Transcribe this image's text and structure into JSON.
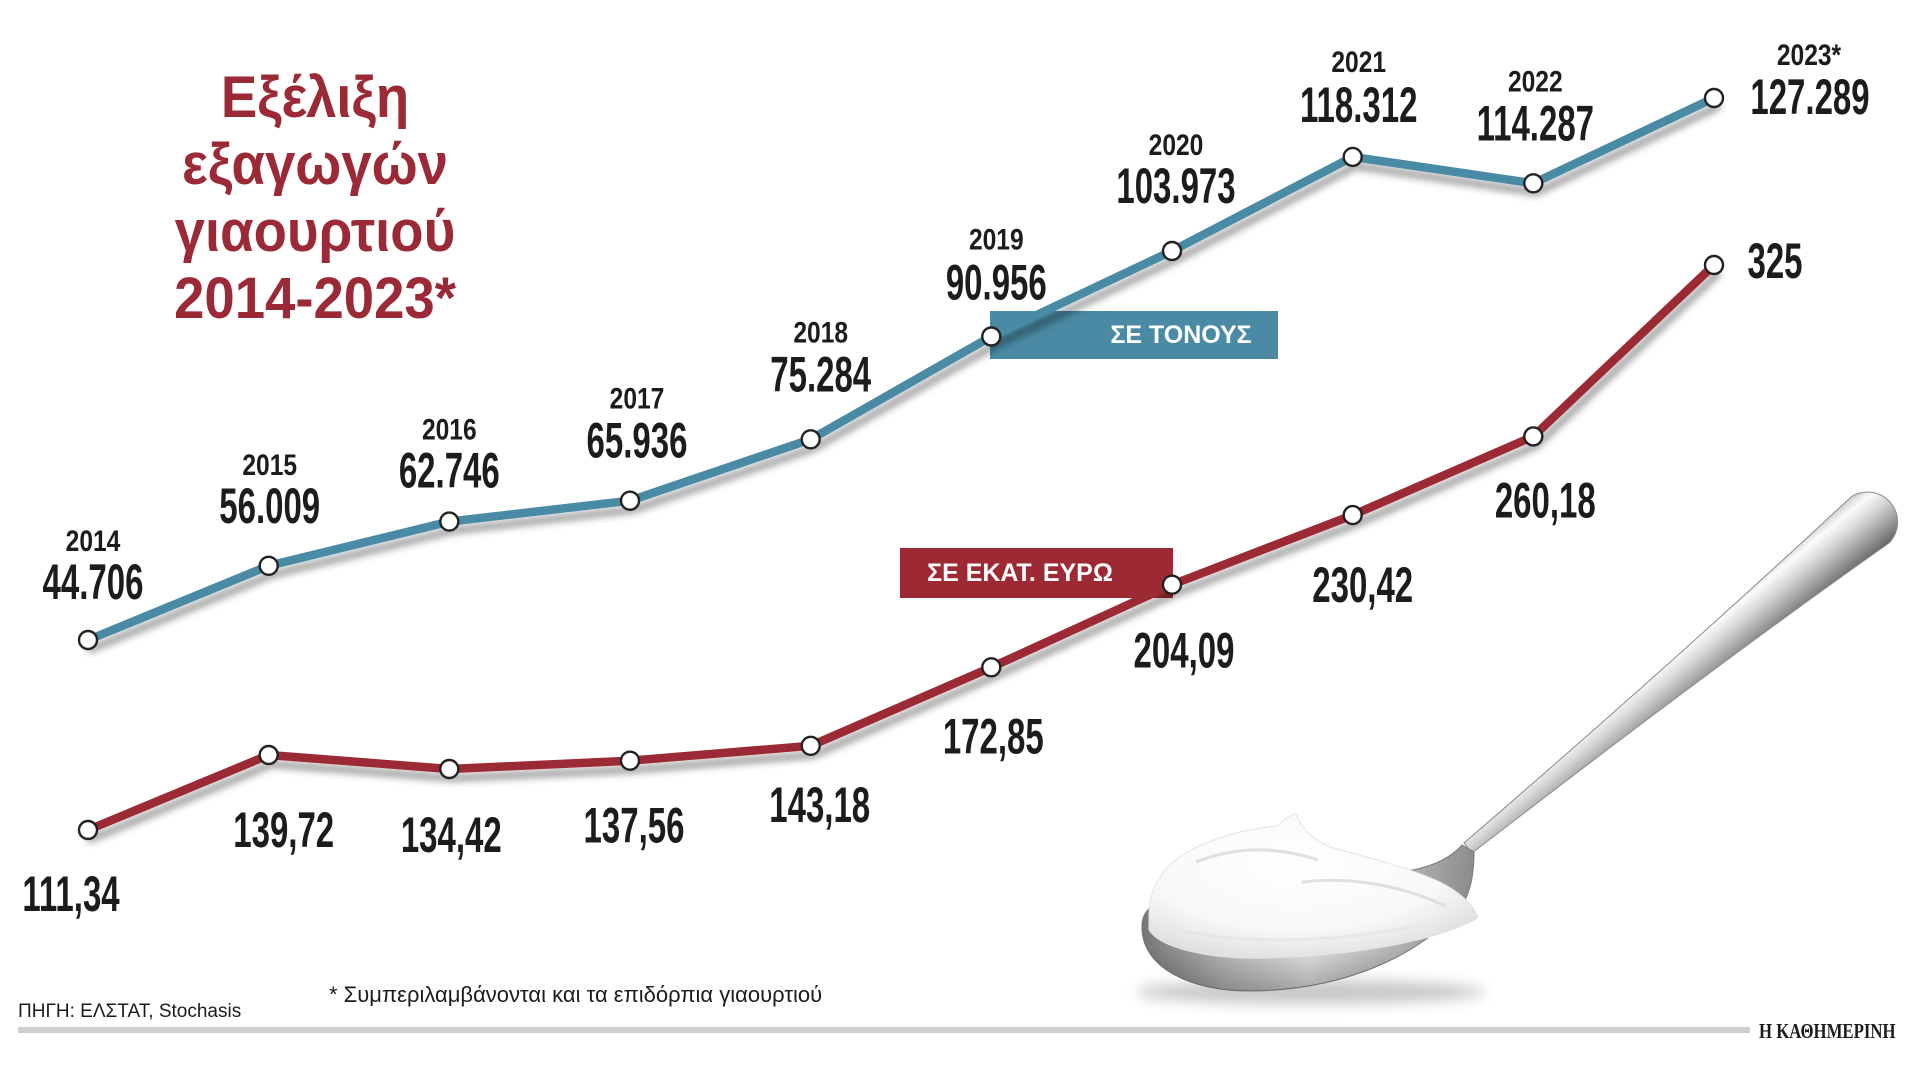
{
  "chart_data": {
    "type": "line",
    "title_lines": [
      "Εξέλιξη",
      "εξαγωγών",
      "γιαουρτιού",
      "2014-2023*"
    ],
    "x": [
      "2014",
      "2015",
      "2016",
      "2017",
      "2018",
      "2019",
      "2020",
      "2021",
      "2022",
      "2023*"
    ],
    "series": [
      {
        "name": "ΣΕ ΤΟΝΟΥΣ",
        "color": "#4a8aa5",
        "values": [
          44706,
          56009,
          62746,
          65936,
          75284,
          90956,
          103973,
          118312,
          114287,
          127289
        ],
        "labels": [
          "44.706",
          "56.009",
          "62.746",
          "65.936",
          "75.284",
          "90.956",
          "103.973",
          "118.312",
          "114.287",
          "127.289"
        ]
      },
      {
        "name": "ΣΕ ΕΚΑΤ. ΕΥΡΩ",
        "color": "#9c2934",
        "values": [
          111.34,
          139.72,
          134.42,
          137.56,
          143.18,
          172.85,
          204.09,
          230.42,
          260.18,
          325
        ],
        "labels": [
          "111,34",
          "139,72",
          "134,42",
          "137,56",
          "143,18",
          "172,85",
          "204,09",
          "230,42",
          "260,18",
          "325"
        ]
      }
    ],
    "xlabel": "",
    "ylabel": "",
    "grid": false,
    "legend": "inline",
    "footnote": "* Συμπεριλαμβάνονται και τα επιδόρπια γιαουρτιού",
    "source": "ΠΗΓΗ: ΕΛΣΤΑΤ, Stochasis"
  },
  "publisher": "Η ΚΑΘΗΜΕΡΙΝΗ",
  "colors": {
    "title": "#9b2936",
    "text": "#1c1c1c",
    "point_fill": "#ffffff",
    "point_stroke": "#222222",
    "rule": "#cfcfcf"
  },
  "illustration": {
    "icon": "spoon-with-yogurt"
  }
}
